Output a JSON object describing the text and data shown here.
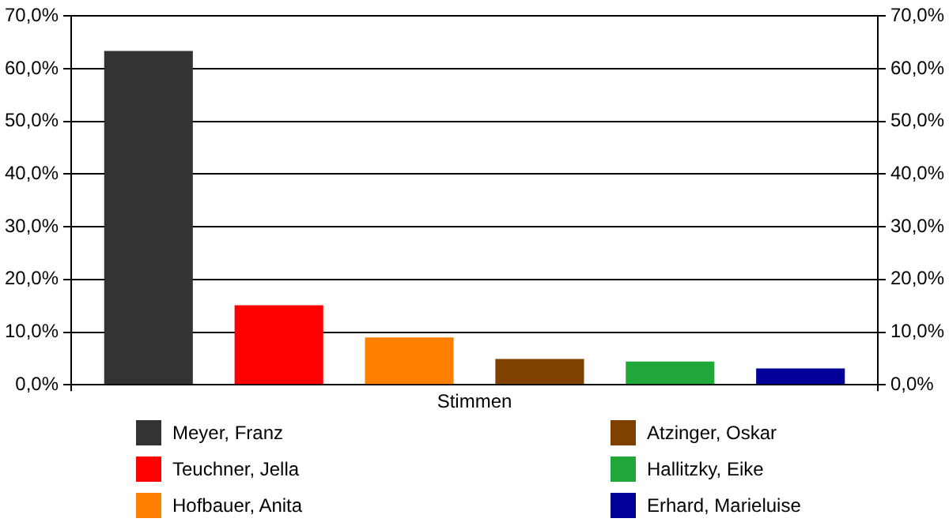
{
  "chart_data": {
    "type": "bar",
    "categories": [
      "Stimmen"
    ],
    "series": [
      {
        "name": "Meyer, Franz",
        "color": "#333333",
        "values": [
          63.4
        ]
      },
      {
        "name": "Teuchner, Jella",
        "color": "#ff0000",
        "values": [
          15.1
        ]
      },
      {
        "name": "Hofbauer, Anita",
        "color": "#ff8000",
        "values": [
          9.0
        ]
      },
      {
        "name": "Atzinger, Oskar",
        "color": "#804000",
        "values": [
          4.9
        ]
      },
      {
        "name": "Hallitzky, Eike",
        "color": "#22a83a",
        "values": [
          4.4
        ]
      },
      {
        "name": "Erhard, Marieluise",
        "color": "#000099",
        "values": [
          3.1
        ]
      }
    ],
    "ylim": [
      0,
      70
    ],
    "yticks": [
      {
        "value": 0,
        "label": "0,0%"
      },
      {
        "value": 10,
        "label": "10,0%"
      },
      {
        "value": 20,
        "label": "20,0%"
      },
      {
        "value": 30,
        "label": "30,0%"
      },
      {
        "value": 40,
        "label": "40,0%"
      },
      {
        "value": 50,
        "label": "50,0%"
      },
      {
        "value": 60,
        "label": "60,0%"
      },
      {
        "value": 70,
        "label": "70,0%"
      }
    ],
    "grid": "y",
    "legend": "bottom"
  }
}
